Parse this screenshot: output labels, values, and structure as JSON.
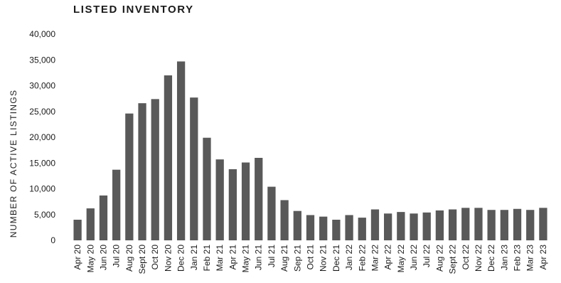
{
  "chart_data": {
    "type": "bar",
    "title": "LISTED INVENTORY",
    "xlabel": "",
    "ylabel": "NUMBER OF ACTIVE LISTINGS",
    "ylim": [
      0,
      40000
    ],
    "yticks": [
      "0",
      "5,000",
      "10,000",
      "15,000",
      "20,000",
      "25,000",
      "30,000",
      "35,000",
      "40,000"
    ],
    "grid": false,
    "bar_color": "#595959",
    "categories": [
      "Apr 20",
      "May 20",
      "Jun 20",
      "Jul 20",
      "Aug 20",
      "Sept 20",
      "Oct 20",
      "Nov 20",
      "Dec 20",
      "Jan 21",
      "Feb 21",
      "Mar 21",
      "Apr 21",
      "May 21",
      "Jun 21",
      "Jul 21",
      "Aug 21",
      "Sep 21",
      "Oct 21",
      "Nov 21",
      "Dec 21",
      "Jan 22",
      "Feb 22",
      "Mar 22",
      "Apr 22",
      "May 22",
      "Jun 22",
      "Jul 22",
      "Aug 22",
      "Sept 22",
      "Oct 22",
      "Nov 22",
      "Dec 22",
      "Jan 23",
      "Feb 23",
      "Mar 23",
      "Apr 23"
    ],
    "values": [
      4000,
      6200,
      8700,
      13700,
      24600,
      26600,
      27400,
      32000,
      34700,
      27700,
      19900,
      15700,
      13800,
      15100,
      16000,
      10400,
      7800,
      5700,
      4900,
      4600,
      4000,
      4900,
      4400,
      6000,
      5200,
      5500,
      5200,
      5400,
      5800,
      6000,
      6300,
      6300,
      5900,
      5900,
      6100,
      5900,
      6300
    ]
  }
}
